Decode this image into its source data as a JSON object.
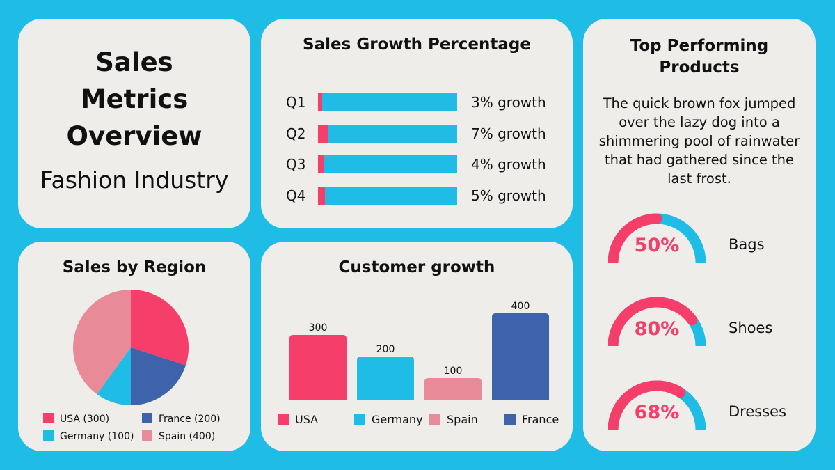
{
  "title_card": {
    "title_line1": "Sales",
    "title_line2": "Metrics",
    "title_line3": "Overview",
    "subtitle": "Fashion Industry"
  },
  "colors": {
    "background": "#1fbde6",
    "card": "#efedea",
    "pink": "#f53e6a",
    "blue": "#1fbde6",
    "light_pink": "#e88a97",
    "navy": "#3f63ab"
  },
  "sales_growth": {
    "title": "Sales Growth Percentage",
    "rows": [
      {
        "label": "Q1",
        "value": 3,
        "text": "3% growth"
      },
      {
        "label": "Q2",
        "value": 7,
        "text": "7% growth"
      },
      {
        "label": "Q3",
        "value": 4,
        "text": "4% growth"
      },
      {
        "label": "Q4",
        "value": 5,
        "text": "5% growth"
      }
    ]
  },
  "top_products": {
    "title_line1": "Top Performing",
    "title_line2": "Products",
    "paragraph": "The quick brown fox jumped over the lazy dog into a shimmering pool of rainwater that had gathered since the last frost.",
    "items": [
      {
        "name": "Bags",
        "percent": 50,
        "label": "50%"
      },
      {
        "name": "Shoes",
        "percent": 80,
        "label": "80%"
      },
      {
        "name": "Dresses",
        "percent": 68,
        "label": "68%"
      }
    ]
  },
  "chart_data": [
    {
      "type": "pie",
      "title": "Sales by Region",
      "categories": [
        "USA",
        "France",
        "Germany",
        "Spain"
      ],
      "values": [
        300,
        200,
        100,
        400
      ],
      "colors": [
        "#f53e6a",
        "#3f63ab",
        "#1fbde6",
        "#e88a97"
      ],
      "legend": [
        "USA (300)",
        "France (200)",
        "Germany (100)",
        "Spain (400)"
      ],
      "legend_position": "bottom"
    },
    {
      "type": "bar",
      "title": "Customer growth",
      "categories": [
        "USA",
        "Germany",
        "Spain",
        "France"
      ],
      "values": [
        300,
        200,
        100,
        400
      ],
      "data_labels": [
        "300",
        "200",
        "100",
        "400"
      ],
      "colors": [
        "#f53e6a",
        "#1fbde6",
        "#e88a97",
        "#3f63ab"
      ],
      "ylim": [
        0,
        400
      ],
      "grid": false,
      "legend_position": "bottom"
    }
  ]
}
